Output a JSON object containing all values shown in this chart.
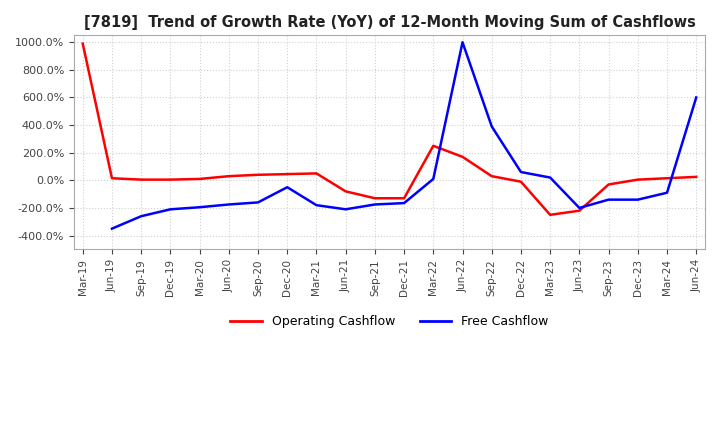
{
  "title": "[7819]  Trend of Growth Rate (YoY) of 12-Month Moving Sum of Cashflows",
  "ylim": [
    -500,
    1050
  ],
  "yticks": [
    -400,
    -200,
    0,
    200,
    400,
    600,
    800,
    1000
  ],
  "background_color": "#ffffff",
  "grid_color": "#d0d0d0",
  "legend_labels": [
    "Operating Cashflow",
    "Free Cashflow"
  ],
  "legend_colors": [
    "red",
    "blue"
  ],
  "x_labels": [
    "Mar-19",
    "Jun-19",
    "Sep-19",
    "Dec-19",
    "Mar-20",
    "Jun-20",
    "Sep-20",
    "Dec-20",
    "Mar-21",
    "Jun-21",
    "Sep-21",
    "Dec-21",
    "Mar-22",
    "Jun-22",
    "Sep-22",
    "Dec-22",
    "Mar-23",
    "Jun-23",
    "Sep-23",
    "Dec-23",
    "Mar-24",
    "Jun-24"
  ],
  "operating_cashflow": [
    990,
    15,
    5,
    5,
    10,
    30,
    40,
    45,
    50,
    -80,
    -130,
    -130,
    250,
    170,
    30,
    -10,
    -250,
    -220,
    -30,
    5,
    15,
    25
  ],
  "free_cashflow": [
    null,
    -350,
    -260,
    -210,
    -195,
    -175,
    -160,
    -50,
    -180,
    -210,
    -175,
    -165,
    10,
    1000,
    390,
    60,
    20,
    -200,
    -140,
    -140,
    -90,
    600
  ]
}
